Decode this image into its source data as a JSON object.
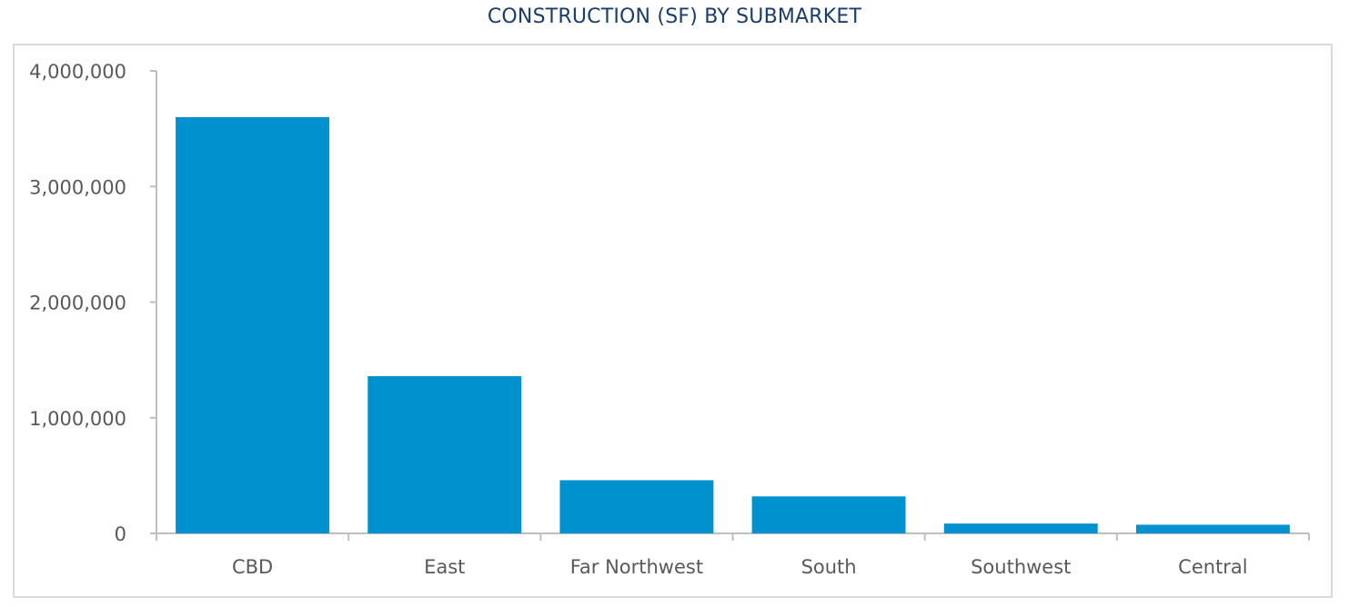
{
  "chart_data": {
    "type": "bar",
    "title": "CONSTRUCTION (SF) BY SUBMARKET",
    "xlabel": "",
    "ylabel": "",
    "categories": [
      "CBD",
      "East",
      "Far Northwest",
      "South",
      "Southwest",
      "Central"
    ],
    "values": [
      3600000,
      1360000,
      460000,
      320000,
      85000,
      75000
    ],
    "ylim": [
      0,
      4000000
    ],
    "yticks": [
      0,
      1000000,
      2000000,
      3000000,
      4000000
    ],
    "ytick_labels": [
      "0",
      "1,000,000",
      "2,000,000",
      "3,000,000",
      "4,000,000"
    ],
    "grid": false,
    "legend": "none",
    "colors": {
      "bar": "#0092cf",
      "axis": "#bfbfbf",
      "title": "#1a3d6e",
      "tick_text": "#595959"
    }
  }
}
